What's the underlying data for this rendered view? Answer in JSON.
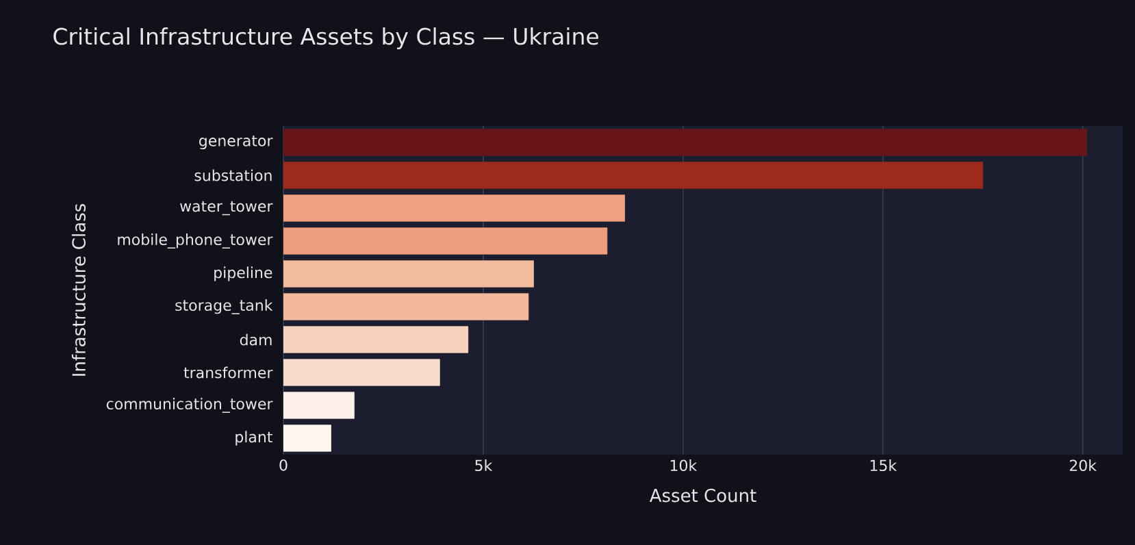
{
  "chart_data": {
    "type": "bar",
    "orientation": "horizontal",
    "title": "Critical Infrastructure Assets by Class — Ukraine",
    "xlabel": "Asset Count",
    "ylabel": "Infrastructure Class",
    "categories": [
      "generator",
      "substation",
      "water_tower",
      "mobile_phone_tower",
      "pipeline",
      "storage_tank",
      "dam",
      "transformer",
      "communication_tower",
      "plant"
    ],
    "values": [
      20100,
      17500,
      8540,
      8100,
      6260,
      6130,
      4620,
      3910,
      1770,
      1190
    ],
    "colors": [
      "#671616",
      "#9c2b1e",
      "#f0a07e",
      "#ee9d7d",
      "#f3bb9d",
      "#f2b99c",
      "#f7d3bf",
      "#f8dccb",
      "#fdf0e9",
      "#fdf5ee"
    ],
    "xlim": [
      0,
      21000
    ],
    "xticks": [
      {
        "value": 0,
        "label": "0"
      },
      {
        "value": 5000,
        "label": "5k"
      },
      {
        "value": 10000,
        "label": "10k"
      },
      {
        "value": 15000,
        "label": "15k"
      },
      {
        "value": 20000,
        "label": "20k"
      }
    ],
    "grid": "x"
  }
}
